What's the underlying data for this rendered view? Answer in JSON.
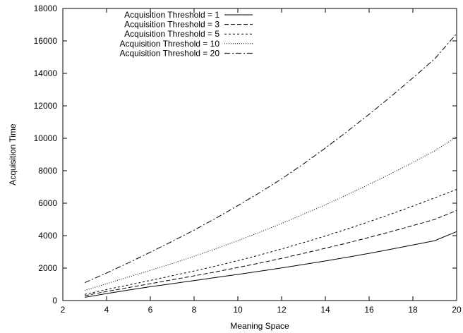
{
  "chart_data": {
    "type": "line",
    "title": "",
    "xlabel": "Meaning Space",
    "ylabel": "Acquisition Time",
    "xlim": [
      2,
      20
    ],
    "ylim": [
      0,
      18000
    ],
    "xticks": [
      2,
      4,
      6,
      8,
      10,
      12,
      14,
      16,
      18,
      20
    ],
    "yticks": [
      0,
      2000,
      4000,
      6000,
      8000,
      10000,
      12000,
      14000,
      16000,
      18000
    ],
    "grid": false,
    "legend_position": "top-left",
    "line_color": "#000000",
    "series": [
      {
        "name": "Acquisition Threshold = 1",
        "dash": "solid",
        "x": [
          3,
          4,
          5,
          6,
          7,
          8,
          9,
          10,
          11,
          12,
          13,
          14,
          15,
          16,
          17,
          18,
          19,
          20
        ],
        "values": [
          200,
          430,
          650,
          850,
          1040,
          1230,
          1420,
          1610,
          1810,
          2010,
          2220,
          2440,
          2670,
          2910,
          3160,
          3420,
          3690,
          4250
        ]
      },
      {
        "name": "Acquisition Threshold = 3",
        "dash": "dashed",
        "x": [
          3,
          4,
          5,
          6,
          7,
          8,
          9,
          10,
          11,
          12,
          13,
          14,
          15,
          16,
          17,
          18,
          19,
          20
        ],
        "values": [
          300,
          560,
          800,
          1040,
          1280,
          1520,
          1770,
          2040,
          2310,
          2600,
          2910,
          3220,
          3550,
          3890,
          4250,
          4620,
          5000,
          5550
        ]
      },
      {
        "name": "Acquisition Threshold = 5",
        "dash": "dotted",
        "x": [
          3,
          4,
          5,
          6,
          7,
          8,
          9,
          10,
          11,
          12,
          13,
          14,
          15,
          16,
          17,
          18,
          19,
          20
        ],
        "values": [
          380,
          680,
          960,
          1240,
          1530,
          1820,
          2130,
          2460,
          2810,
          3180,
          3570,
          3980,
          4410,
          4860,
          5330,
          5820,
          6330,
          6850
        ]
      },
      {
        "name": "Acquisition Threshold = 10",
        "dash": "fine-dotted",
        "x": [
          3,
          4,
          5,
          6,
          7,
          8,
          9,
          10,
          11,
          12,
          13,
          14,
          15,
          16,
          17,
          18,
          19,
          20
        ],
        "values": [
          620,
          1040,
          1450,
          1860,
          2280,
          2730,
          3200,
          3690,
          4210,
          4750,
          5320,
          5900,
          6520,
          7160,
          7820,
          8510,
          9230,
          10080
        ]
      },
      {
        "name": "Acquisition Threshold = 20",
        "dash": "dash-dot",
        "x": [
          3,
          4,
          5,
          6,
          7,
          8,
          9,
          10,
          11,
          12,
          13,
          14,
          15,
          16,
          17,
          18,
          19,
          20
        ],
        "values": [
          1100,
          1700,
          2320,
          2980,
          3650,
          4340,
          5080,
          5850,
          6650,
          7500,
          8420,
          9400,
          10420,
          11480,
          12580,
          13720,
          14900,
          16450
        ]
      }
    ]
  }
}
